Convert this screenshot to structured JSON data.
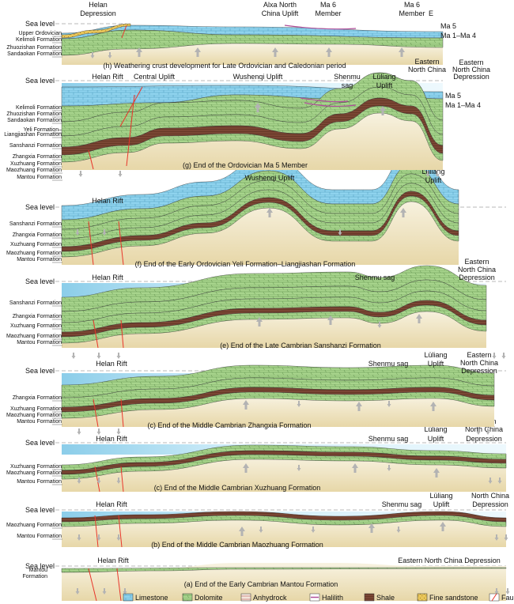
{
  "sea_level_label": "Sea level",
  "colors": {
    "limestone": "#8fd3ee",
    "dolomite": "#9ccf86",
    "anhydrock": "#c97b75",
    "halilith": "#b04f9a",
    "shale": "#7a4634",
    "fine_sandstone": "#e9c65a",
    "fault": "#e8352a",
    "basement_top": "#f7f2df",
    "basement_bottom": "#e6d6a5",
    "sea": "#cfeefa",
    "uplift_arrow": "#b3b3b3"
  },
  "panels": [
    {
      "id": "h",
      "caption": "(h) Weathering crust development for Late Ordovician and Caledonian period",
      "labels": [
        {
          "text": "Helan",
          "role": "top"
        },
        {
          "text": "Depression",
          "role": "top"
        },
        {
          "text": "Alxa North",
          "role": "top"
        },
        {
          "text": "China Uplift",
          "role": "top"
        },
        {
          "text": "Ma 6",
          "role": "top"
        },
        {
          "text": "Member",
          "role": "top"
        },
        {
          "text": "Ma 6",
          "role": "top"
        },
        {
          "text": "Member",
          "role": "top"
        },
        {
          "text": "E",
          "role": "top"
        },
        {
          "text": "Ma 5",
          "role": "right"
        },
        {
          "text": "Ma 1–Ma 4",
          "role": "right"
        }
      ],
      "formations": [
        "Upper Ordovician",
        "Kelimoli Formation",
        "Zhuozishan Formation",
        "Sandaokan Formation"
      ],
      "bottom_labels": [
        "Eastern",
        "North China"
      ]
    },
    {
      "id": "g",
      "caption": "(g) End of the Ordovician Ma 5 Member",
      "labels": [
        {
          "text": "Helan Rift"
        },
        {
          "text": "Central Uplift"
        },
        {
          "text": "Wushenqi Uplift"
        },
        {
          "text": "Shenmu"
        },
        {
          "text": "sag"
        },
        {
          "text": "Lüliang"
        },
        {
          "text": "Uplift"
        },
        {
          "text": "Eastern"
        },
        {
          "text": "North China"
        },
        {
          "text": "Depression"
        },
        {
          "text": "Ma 5"
        },
        {
          "text": "Ma 1–Ma 4"
        }
      ],
      "formations": [
        "Kelimoli Formation",
        "Zhuozishan Formation",
        "Sandaokan Formation",
        "Yeli Formation–",
        "Liangjiashan Formation",
        "Sanshanzi Formation",
        "Zhangxia Formation",
        "Xuzhuang Formation",
        "Maozhuang Formation",
        "Mantou Formation"
      ]
    },
    {
      "id": "f",
      "caption": "(f) End of the Early Ordovician Yeli Formation–Liangjiashan Formation",
      "labels": [
        {
          "text": "Helan Rift"
        },
        {
          "text": "Wushenqi Uplift"
        },
        {
          "text": "Lüliang"
        },
        {
          "text": "Uplift"
        }
      ],
      "formations": [
        "Sanshanzi Formation",
        "Zhangxia Formation",
        "Xuzhuang Formation",
        "Maozhuang Formation",
        "Mantou Formation"
      ]
    },
    {
      "id": "e",
      "caption": "(e) End of the Late Cambrian Sanshanzi Formation",
      "labels": [
        {
          "text": "Helan Rift"
        },
        {
          "text": "Shenmu sag"
        },
        {
          "text": "Eastern"
        },
        {
          "text": "North China"
        },
        {
          "text": "Depression"
        }
      ],
      "formations": [
        "Sanshanzi Formation",
        "Zhangxia Formation",
        "Xuzhuang Formation",
        "Maozhuang Formation",
        "Mantou Formation"
      ]
    },
    {
      "id": "d",
      "caption": "(c) End of the Middle Cambrian Zhangxia Formation",
      "labels": [
        {
          "text": "Helan Rift"
        },
        {
          "text": "Shenmu sag"
        },
        {
          "text": "Lüliang"
        },
        {
          "text": "Uplift"
        },
        {
          "text": "Eastern"
        },
        {
          "text": "North China"
        },
        {
          "text": "Depression"
        }
      ],
      "formations": [
        "Zhangxia Formation",
        "Xuzhuang Formation",
        "Maozhuang Formation",
        "Mantou Formation"
      ]
    },
    {
      "id": "c",
      "caption": "(c) End of the Middle Cambrian Xuzhuang Formation",
      "labels": [
        {
          "text": "Helan Rift"
        },
        {
          "text": "Shenmu sag"
        },
        {
          "text": "Lüliang"
        },
        {
          "text": "Uplift"
        },
        {
          "text": "Eastern"
        },
        {
          "text": "North China"
        },
        {
          "text": "Depression"
        }
      ],
      "formations": [
        "Xuzhuang Formation",
        "Maozhuang Formation",
        "Mantou Formation"
      ]
    },
    {
      "id": "b",
      "caption": "(b) End of the Middle Cambrian Maozhuang Formation",
      "labels": [
        {
          "text": "Helan Rift"
        },
        {
          "text": "Shenmu sag"
        },
        {
          "text": "Lüliang"
        },
        {
          "text": "Uplift"
        },
        {
          "text": "Eastern"
        },
        {
          "text": "North China"
        },
        {
          "text": "Depression"
        }
      ],
      "formations": [
        "Maozhuang Formation",
        "Mantou Formation"
      ]
    },
    {
      "id": "a",
      "caption": "(a) End of the Early Cambrian Mantou Formation",
      "labels": [
        {
          "text": "Helan Rift"
        },
        {
          "text": "Eastern North China Depression"
        }
      ],
      "formations": [
        "Mantou",
        "Formation"
      ]
    }
  ],
  "legend": [
    {
      "key": "limestone",
      "label": "Limestone"
    },
    {
      "key": "dolomite",
      "label": "Dolomite"
    },
    {
      "key": "anhydrock",
      "label": "Anhydrock"
    },
    {
      "key": "halilith",
      "label": "Halilith"
    },
    {
      "key": "shale",
      "label": "Shale"
    },
    {
      "key": "fine_sandstone",
      "label": "Fine sandstone"
    },
    {
      "key": "fault",
      "label": "Fault"
    }
  ]
}
